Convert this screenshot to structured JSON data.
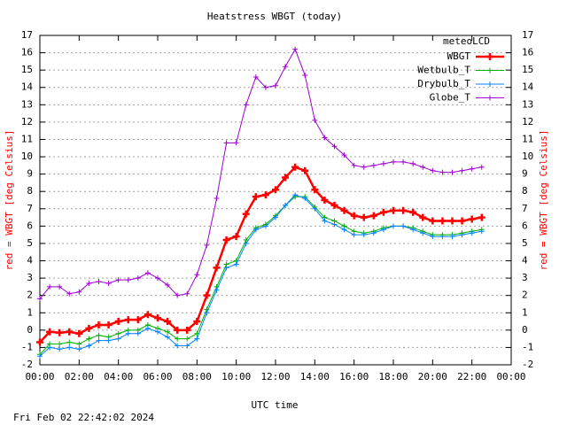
{
  "chart_data": {
    "type": "line",
    "title": "Heatstress WBGT (today)",
    "xlabel": "UTC time",
    "ylabel": "red = WBGT [deg Celsius]",
    "y2label": "red = WBGT [deg Celsius]",
    "footer": "Fri Feb 02 22:42:02 2024",
    "legend_title": "meteoLCD",
    "legend": "upper right",
    "grid": true,
    "x": [
      0,
      0.5,
      1,
      1.5,
      2,
      2.5,
      3,
      3.5,
      4,
      4.5,
      5,
      5.5,
      6,
      6.5,
      7,
      7.5,
      8,
      8.5,
      9,
      9.5,
      10,
      10.5,
      11,
      11.5,
      12,
      12.5,
      13,
      13.5,
      14,
      14.5,
      15,
      15.5,
      16,
      16.5,
      17,
      17.5,
      18,
      18.5,
      19,
      19.5,
      20,
      20.5,
      21,
      21.5,
      22,
      22.5
    ],
    "xlim": [
      0,
      24
    ],
    "xticks": [
      {
        "value": 0,
        "label": "00:00"
      },
      {
        "value": 2,
        "label": "02:00"
      },
      {
        "value": 4,
        "label": "04:00"
      },
      {
        "value": 6,
        "label": "06:00"
      },
      {
        "value": 8,
        "label": "08:00"
      },
      {
        "value": 10,
        "label": "10:00"
      },
      {
        "value": 12,
        "label": "12:00"
      },
      {
        "value": 14,
        "label": "14:00"
      },
      {
        "value": 16,
        "label": "16:00"
      },
      {
        "value": 18,
        "label": "18:00"
      },
      {
        "value": 20,
        "label": "20:00"
      },
      {
        "value": 22,
        "label": "22:00"
      },
      {
        "value": 24,
        "label": "00:00"
      }
    ],
    "ylim": [
      -2,
      17
    ],
    "yticks": [
      -2,
      -1,
      0,
      1,
      2,
      3,
      4,
      5,
      6,
      7,
      8,
      9,
      10,
      11,
      12,
      13,
      14,
      15,
      16,
      17
    ],
    "y2lim": [
      -2,
      17
    ],
    "y2ticks": [
      -2,
      -1,
      0,
      1,
      2,
      3,
      4,
      5,
      6,
      7,
      8,
      9,
      10,
      11,
      12,
      13,
      14,
      15,
      16,
      17
    ],
    "series": [
      {
        "name": "WBGT",
        "color": "#ff0000",
        "width": 2.5,
        "values": [
          -0.7,
          -0.1,
          -0.15,
          -0.1,
          -0.2,
          0.1,
          0.3,
          0.3,
          0.5,
          0.6,
          0.6,
          0.9,
          0.7,
          0.5,
          0.0,
          0.0,
          0.5,
          2.0,
          3.6,
          5.2,
          5.4,
          6.7,
          7.7,
          7.8,
          8.1,
          8.8,
          9.4,
          9.2,
          8.1,
          7.5,
          7.2,
          6.9,
          6.6,
          6.5,
          6.6,
          6.8,
          6.9,
          6.9,
          6.8,
          6.5,
          6.3,
          6.3,
          6.3,
          6.3,
          6.4,
          6.5
        ]
      },
      {
        "name": "Wetbulb_T",
        "color": "#00b000",
        "width": 1,
        "values": [
          -1.4,
          -0.8,
          -0.8,
          -0.7,
          -0.8,
          -0.5,
          -0.3,
          -0.4,
          -0.2,
          0.0,
          0.0,
          0.3,
          0.1,
          -0.1,
          -0.5,
          -0.5,
          -0.2,
          1.2,
          2.5,
          3.8,
          4.0,
          5.2,
          5.9,
          6.1,
          6.6,
          7.2,
          7.7,
          7.7,
          7.1,
          6.5,
          6.3,
          6.0,
          5.7,
          5.6,
          5.7,
          5.9,
          6.0,
          6.0,
          5.9,
          5.7,
          5.5,
          5.5,
          5.5,
          5.6,
          5.7,
          5.8
        ]
      },
      {
        "name": "Drybulb_T",
        "color": "#0080ff",
        "width": 1,
        "values": [
          -1.5,
          -1.0,
          -1.1,
          -1.0,
          -1.1,
          -0.9,
          -0.6,
          -0.6,
          -0.5,
          -0.2,
          -0.2,
          0.1,
          -0.1,
          -0.4,
          -0.9,
          -0.9,
          -0.5,
          1.0,
          2.3,
          3.6,
          3.8,
          5.0,
          5.8,
          6.0,
          6.5,
          7.2,
          7.8,
          7.6,
          7.0,
          6.3,
          6.1,
          5.8,
          5.5,
          5.5,
          5.6,
          5.8,
          6.0,
          6.0,
          5.8,
          5.6,
          5.4,
          5.4,
          5.4,
          5.5,
          5.6,
          5.7
        ]
      },
      {
        "name": "Globe_T",
        "color": "#a000d0",
        "width": 1,
        "values": [
          1.8,
          2.5,
          2.5,
          2.1,
          2.2,
          2.7,
          2.8,
          2.7,
          2.9,
          2.9,
          3.0,
          3.3,
          3.0,
          2.6,
          2.0,
          2.1,
          3.2,
          4.9,
          7.6,
          10.8,
          10.8,
          13.0,
          14.6,
          14.0,
          14.1,
          15.2,
          16.2,
          14.7,
          12.1,
          11.1,
          10.6,
          10.1,
          9.5,
          9.4,
          9.5,
          9.6,
          9.7,
          9.7,
          9.6,
          9.4,
          9.2,
          9.1,
          9.1,
          9.2,
          9.3,
          9.4
        ]
      }
    ]
  }
}
